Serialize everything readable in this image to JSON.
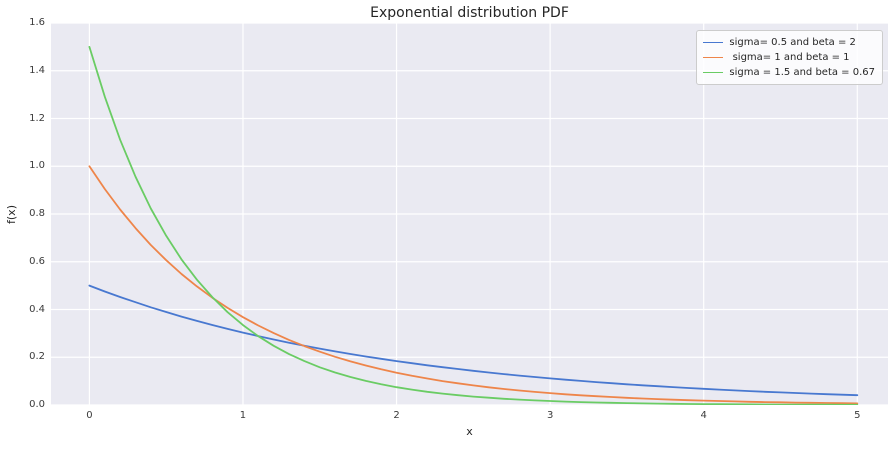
{
  "chart_data": {
    "type": "line",
    "title": "Exponential distribution PDF",
    "xlabel": "x",
    "ylabel": "f(x)",
    "xlim": [
      -0.25,
      5.2
    ],
    "ylim": [
      0,
      1.6
    ],
    "xticks": [
      0,
      1,
      2,
      3,
      4,
      5
    ],
    "xtick_labels": [
      "0",
      "1",
      "2",
      "3",
      "4",
      "5"
    ],
    "yticks": [
      0,
      0.2,
      0.4,
      0.6,
      0.8,
      1.0,
      1.2,
      1.4,
      1.6
    ],
    "ytick_labels": [
      "0.0",
      "0.2",
      "0.4",
      "0.6",
      "0.8",
      "1.0",
      "1.2",
      "1.4",
      "1.6"
    ],
    "grid": true,
    "legend_position": "upper right",
    "plot_background": "#eaeaf2",
    "gridline_color": "#ffffff",
    "line_width": 1.8,
    "x": [
      0,
      0.1,
      0.2,
      0.3,
      0.4,
      0.5,
      0.6,
      0.7,
      0.8,
      0.9,
      1,
      1.1,
      1.2,
      1.3,
      1.4,
      1.5,
      1.6,
      1.7,
      1.8,
      1.9,
      2,
      2.1,
      2.2,
      2.3,
      2.4,
      2.5,
      2.6,
      2.7,
      2.8,
      2.9,
      3,
      3.1,
      3.2,
      3.3,
      3.4,
      3.5,
      3.6,
      3.7,
      3.8,
      3.9,
      4,
      4.1,
      4.2,
      4.3,
      4.4,
      4.5,
      4.6,
      4.7,
      4.8,
      4.9,
      5
    ],
    "series": [
      {
        "name": "sigma= 0.5 and beta = 2",
        "color": "#4878d0",
        "values": [
          0.5,
          0.4756,
          0.4524,
          0.4304,
          0.4094,
          0.3894,
          0.3704,
          0.3523,
          0.3352,
          0.3188,
          0.3033,
          0.2885,
          0.2744,
          0.261,
          0.2483,
          0.2362,
          0.2247,
          0.2137,
          0.2033,
          0.1934,
          0.1839,
          0.175,
          0.1664,
          0.1583,
          0.1506,
          0.1433,
          0.1363,
          0.1296,
          0.1233,
          0.1173,
          0.1116,
          0.1061,
          0.1009,
          0.096,
          0.0913,
          0.0869,
          0.0826,
          0.0786,
          0.0748,
          0.0711,
          0.0677,
          0.0644,
          0.0612,
          0.0582,
          0.0554,
          0.0527,
          0.0501,
          0.0477,
          0.0454,
          0.0431,
          0.041
        ]
      },
      {
        "name": " sigma= 1 and beta = 1",
        "color": "#ee854a",
        "values": [
          1,
          0.9048,
          0.8187,
          0.7408,
          0.6703,
          0.6065,
          0.5488,
          0.4966,
          0.4493,
          0.4066,
          0.3679,
          0.3329,
          0.3012,
          0.2725,
          0.2466,
          0.2231,
          0.2019,
          0.1827,
          0.1653,
          0.1496,
          0.1353,
          0.1225,
          0.1108,
          0.1003,
          0.0907,
          0.0821,
          0.0743,
          0.0672,
          0.0608,
          0.055,
          0.0498,
          0.045,
          0.0408,
          0.0369,
          0.0334,
          0.0302,
          0.0273,
          0.0247,
          0.0224,
          0.0202,
          0.0183,
          0.0166,
          0.015,
          0.0136,
          0.0123,
          0.0111,
          0.0101,
          0.0091,
          0.0082,
          0.0074,
          0.0067
        ]
      },
      {
        "name": "sigma = 1.5 and beta = 0.67",
        "color": "#6acc64",
        "values": [
          1.5,
          1.2911,
          1.1112,
          0.9564,
          0.8232,
          0.7086,
          0.6099,
          0.5249,
          0.4518,
          0.3889,
          0.3347,
          0.2881,
          0.2479,
          0.2134,
          0.1837,
          0.1581,
          0.1361,
          0.1171,
          0.1008,
          0.0868,
          0.0747,
          0.0643,
          0.0553,
          0.0476,
          0.041,
          0.0353,
          0.0304,
          0.0261,
          0.0225,
          0.0194,
          0.0167,
          0.0143,
          0.0123,
          0.0106,
          0.0091,
          0.0079,
          0.0068,
          0.0058,
          0.005,
          0.0043,
          0.0037,
          0.0032,
          0.0028,
          0.0024,
          0.002,
          0.0018,
          0.0015,
          0.0013,
          0.0011,
          0.001,
          0.0008
        ]
      }
    ]
  }
}
